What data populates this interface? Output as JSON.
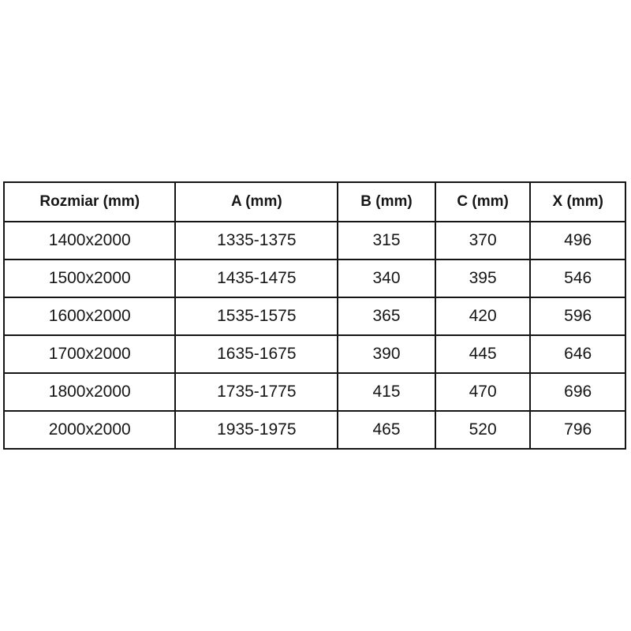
{
  "chart_data": {
    "type": "table",
    "columns": [
      "Rozmiar (mm)",
      "A (mm)",
      "B (mm)",
      "C (mm)",
      "X (mm)"
    ],
    "rows": [
      [
        "1400x2000",
        "1335-1375",
        "315",
        "370",
        "496"
      ],
      [
        "1500x2000",
        "1435-1475",
        "340",
        "395",
        "546"
      ],
      [
        "1600x2000",
        "1535-1575",
        "365",
        "420",
        "596"
      ],
      [
        "1700x2000",
        "1635-1675",
        "390",
        "445",
        "646"
      ],
      [
        "1800x2000",
        "1735-1775",
        "415",
        "470",
        "696"
      ],
      [
        "2000x2000",
        "1935-1975",
        "465",
        "520",
        "796"
      ]
    ],
    "title": "",
    "layout": {
      "grid": true,
      "header_bold": true,
      "text_align": "center"
    }
  },
  "colors": {
    "background": "#ffffff",
    "border": "#151515",
    "text": "#161616"
  }
}
